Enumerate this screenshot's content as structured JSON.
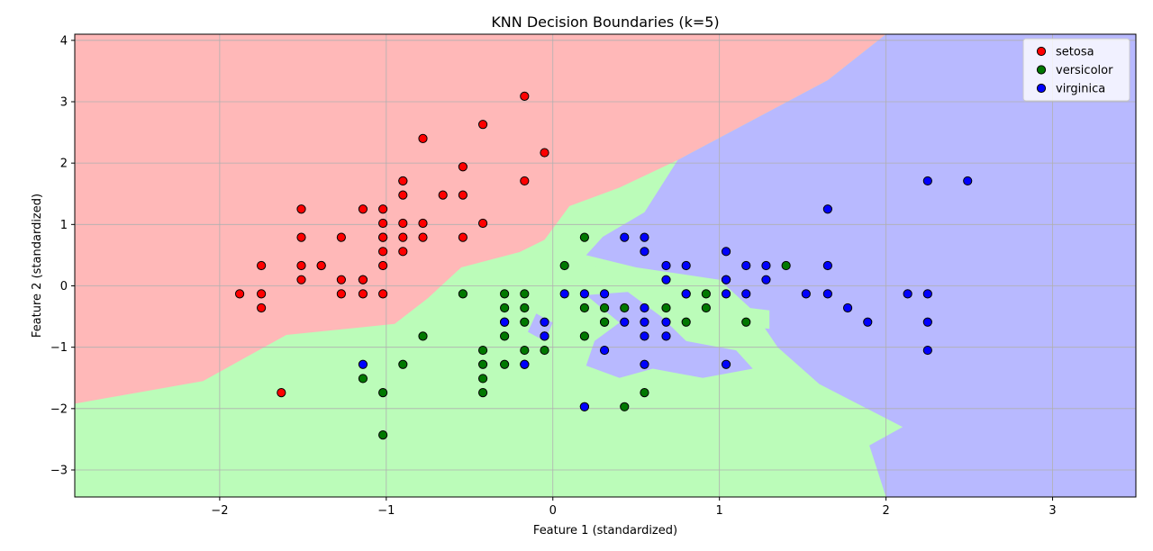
{
  "chart_data": {
    "type": "scatter",
    "title": "KNN Decision Boundaries (k=5)",
    "xlabel": "Feature 1 (standardized)",
    "ylabel": "Feature 2 (standardized)",
    "xlim": [
      -2.87,
      3.5
    ],
    "ylim": [
      -3.44,
      4.1
    ],
    "x_ticks": [
      -2,
      -1,
      0,
      1,
      2,
      3
    ],
    "x_tick_labels": [
      "−2",
      "−1",
      "0",
      "1",
      "2",
      "3"
    ],
    "y_ticks": [
      -3,
      -2,
      -1,
      0,
      1,
      2,
      3,
      4
    ],
    "y_tick_labels": [
      "−3",
      "−2",
      "−1",
      "0",
      "1",
      "2",
      "3",
      "4"
    ],
    "grid": true,
    "legend_position": "top-right",
    "region_colors": {
      "setosa": "#ffb8b8",
      "versicolor": "#bbfcb9",
      "virginica": "#b8b9ff"
    },
    "regions": {
      "setosa": [
        [
          -2.87,
          4.1
        ],
        [
          2.0,
          4.1
        ],
        [
          1.65,
          3.35
        ],
        [
          1.2,
          2.7
        ],
        [
          0.75,
          2.05
        ],
        [
          0.4,
          1.6
        ],
        [
          0.1,
          1.3
        ],
        [
          -0.05,
          0.75
        ],
        [
          -0.2,
          0.55
        ],
        [
          -0.55,
          0.3
        ],
        [
          -0.75,
          -0.2
        ],
        [
          -0.95,
          -0.62
        ],
        [
          -1.6,
          -0.8
        ],
        [
          -2.1,
          -1.55
        ],
        [
          -2.87,
          -1.92
        ]
      ],
      "versicolor_main": [
        [
          -2.87,
          -1.92
        ],
        [
          -2.1,
          -1.55
        ],
        [
          -1.6,
          -0.8
        ],
        [
          -0.95,
          -0.62
        ],
        [
          -0.75,
          -0.2
        ],
        [
          -0.55,
          0.3
        ],
        [
          -0.2,
          0.55
        ],
        [
          -0.05,
          0.75
        ],
        [
          0.1,
          1.3
        ],
        [
          0.4,
          1.6
        ],
        [
          0.75,
          2.05
        ],
        [
          0.55,
          1.2
        ],
        [
          0.3,
          0.8
        ],
        [
          0.2,
          0.5
        ],
        [
          0.5,
          0.3
        ],
        [
          1.0,
          0.1
        ],
        [
          1.2,
          -0.4
        ],
        [
          1.35,
          -1.0
        ],
        [
          1.6,
          -1.6
        ],
        [
          2.1,
          -2.3
        ],
        [
          1.9,
          -2.6
        ],
        [
          2.0,
          -3.44
        ],
        [
          -2.87,
          -3.44
        ]
      ],
      "virginica_main": [
        [
          2.0,
          4.1
        ],
        [
          3.5,
          4.1
        ],
        [
          3.5,
          -3.44
        ],
        [
          2.0,
          -3.44
        ],
        [
          1.9,
          -2.6
        ],
        [
          2.1,
          -2.3
        ],
        [
          1.6,
          -1.6
        ],
        [
          1.35,
          -1.0
        ],
        [
          1.2,
          -0.4
        ],
        [
          1.0,
          0.1
        ],
        [
          0.5,
          0.3
        ],
        [
          0.2,
          0.5
        ],
        [
          0.3,
          0.8
        ],
        [
          0.55,
          1.2
        ],
        [
          0.75,
          2.05
        ],
        [
          1.2,
          2.7
        ],
        [
          1.65,
          3.35
        ]
      ],
      "virginica_islands": [
        [
          [
            0.2,
            -0.15
          ],
          [
            0.45,
            -0.1
          ],
          [
            0.65,
            -0.5
          ],
          [
            0.8,
            -0.9
          ],
          [
            1.1,
            -1.05
          ],
          [
            1.2,
            -1.35
          ],
          [
            0.9,
            -1.5
          ],
          [
            0.6,
            -1.35
          ],
          [
            0.4,
            -1.5
          ],
          [
            0.2,
            -1.3
          ],
          [
            0.25,
            -0.9
          ],
          [
            0.4,
            -0.6
          ]
        ],
        [
          [
            -0.1,
            -0.45
          ],
          [
            0.0,
            -0.6
          ],
          [
            -0.05,
            -0.9
          ],
          [
            -0.15,
            -0.75
          ]
        ],
        [
          [
            1.0,
            -1.2
          ],
          [
            1.15,
            -1.25
          ],
          [
            1.1,
            -1.4
          ],
          [
            0.95,
            -1.35
          ]
        ]
      ],
      "versicolor_islands": [
        [
          [
            0.0,
            0.35
          ],
          [
            0.3,
            0.3
          ],
          [
            0.4,
            0.2
          ],
          [
            0.3,
            0.05
          ],
          [
            0.1,
            0.1
          ]
        ],
        [
          [
            0.7,
            0.15
          ],
          [
            1.0,
            0.08
          ],
          [
            0.95,
            -0.05
          ],
          [
            0.75,
            -0.05
          ]
        ],
        [
          [
            0.75,
            -0.2
          ],
          [
            1.0,
            -0.25
          ],
          [
            1.05,
            -0.55
          ],
          [
            0.85,
            -0.75
          ],
          [
            0.7,
            -0.5
          ]
        ],
        [
          [
            1.15,
            -0.35
          ],
          [
            1.3,
            -0.4
          ],
          [
            1.3,
            -0.7
          ],
          [
            1.15,
            -0.65
          ]
        ]
      ]
    },
    "series": [
      {
        "name": "setosa",
        "color": "#ff0000",
        "x": [
          -1.88,
          -1.75,
          -1.75,
          -1.75,
          -1.63,
          -1.51,
          -1.51,
          -1.51,
          -1.51,
          -1.39,
          -1.39,
          -1.27,
          -1.27,
          -1.27,
          -1.14,
          -1.14,
          -1.14,
          -1.14,
          -1.02,
          -1.02,
          -1.02,
          -1.02,
          -1.02,
          -1.02,
          -1.02,
          -0.9,
          -0.9,
          -0.9,
          -0.9,
          -0.9,
          -0.9,
          -0.78,
          -0.78,
          -0.78,
          -0.66,
          -0.54,
          -0.54,
          -0.54,
          -0.42,
          -0.42,
          -0.17,
          -0.17,
          -0.05
        ],
        "y": [
          -0.13,
          -0.13,
          0.33,
          -0.36,
          -1.74,
          1.25,
          0.79,
          0.33,
          0.1,
          0.33,
          0.33,
          0.79,
          0.1,
          -0.13,
          1.25,
          0.1,
          0.1,
          -0.13,
          1.25,
          1.02,
          0.79,
          0.79,
          0.56,
          0.33,
          -0.13,
          1.71,
          1.71,
          1.48,
          1.02,
          0.79,
          0.56,
          2.4,
          1.02,
          0.79,
          1.48,
          1.94,
          1.48,
          0.79,
          2.63,
          1.02,
          3.09,
          1.71,
          2.17
        ]
      },
      {
        "name": "versicolor",
        "color": "#007800",
        "x": [
          -1.14,
          -1.02,
          -1.02,
          -0.9,
          -0.78,
          -0.54,
          -0.42,
          -0.42,
          -0.42,
          -0.42,
          -0.29,
          -0.29,
          -0.29,
          -0.29,
          -0.29,
          -0.17,
          -0.17,
          -0.17,
          -0.17,
          -0.17,
          -0.05,
          -0.05,
          0.07,
          0.19,
          0.19,
          0.19,
          0.19,
          0.31,
          0.31,
          0.31,
          0.43,
          0.43,
          0.55,
          0.68,
          0.8,
          0.8,
          0.92,
          0.92,
          1.16,
          1.4
        ],
        "y": [
          -1.51,
          -1.74,
          -2.43,
          -1.28,
          -0.82,
          -0.13,
          -1.05,
          -1.28,
          -1.51,
          -1.74,
          -0.13,
          -0.36,
          -0.82,
          -1.28,
          -0.59,
          -0.13,
          -0.36,
          -0.59,
          -1.05,
          -1.28,
          -0.82,
          -1.05,
          0.33,
          0.79,
          -0.36,
          -0.82,
          -1.97,
          -0.36,
          -0.59,
          -0.59,
          -0.36,
          -1.97,
          -1.74,
          -0.36,
          -0.59,
          -0.13,
          -0.13,
          -0.36,
          -0.59,
          0.33
        ]
      },
      {
        "name": "virginica",
        "color": "#0000ff",
        "x": [
          -1.14,
          -0.29,
          -0.17,
          -0.05,
          -0.05,
          0.07,
          0.19,
          0.19,
          0.31,
          0.31,
          0.43,
          0.43,
          0.55,
          0.55,
          0.55,
          0.55,
          0.55,
          0.55,
          0.68,
          0.68,
          0.68,
          0.68,
          0.8,
          0.8,
          1.04,
          1.04,
          1.04,
          1.04,
          1.04,
          1.16,
          1.16,
          1.28,
          1.28,
          1.52,
          1.65,
          1.65,
          1.65,
          1.77,
          1.89,
          2.13,
          2.25,
          2.25,
          2.25,
          2.25,
          2.49
        ],
        "y": [
          -1.28,
          -0.59,
          -1.28,
          -0.59,
          -0.82,
          -0.13,
          -0.13,
          -1.97,
          -0.13,
          -1.05,
          0.79,
          -0.59,
          0.79,
          0.56,
          -0.36,
          -0.59,
          -0.82,
          -1.28,
          0.33,
          0.1,
          -0.59,
          -0.82,
          0.33,
          -0.13,
          0.56,
          0.1,
          0.1,
          -0.13,
          -1.28,
          0.33,
          -0.13,
          0.33,
          0.1,
          -0.13,
          1.25,
          0.33,
          -0.13,
          -0.36,
          -0.59,
          -0.13,
          1.71,
          -0.13,
          -0.59,
          -1.05,
          1.71
        ]
      }
    ]
  }
}
